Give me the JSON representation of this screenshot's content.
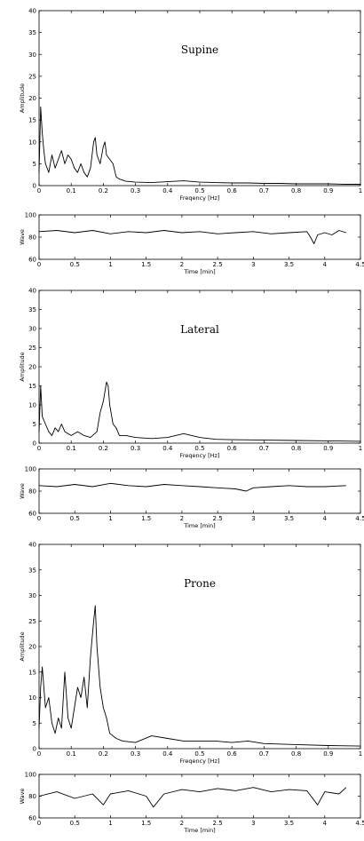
{
  "chart_data": [
    {
      "type": "line",
      "title": "Supine",
      "xlabel": "Freqency [Hz]",
      "ylabel": "Amplitude",
      "xlim": [
        0,
        1
      ],
      "ylim": [
        0,
        40
      ],
      "xticks": [
        "0",
        "0.1",
        "0.2",
        "0.3",
        "0.4",
        "0.5",
        "0.6",
        "0.7",
        "0.8",
        "0.9",
        "1"
      ],
      "yticks": [
        "0",
        "5",
        "10",
        "15",
        "20",
        "25",
        "30",
        "35",
        "40"
      ],
      "grid": false,
      "series": [
        {
          "x": [
            0,
            0.005,
            0.01,
            0.015,
            0.02,
            0.03,
            0.04,
            0.05,
            0.06,
            0.07,
            0.08,
            0.09,
            0.1,
            0.11,
            0.12,
            0.13,
            0.14,
            0.15,
            0.16,
            0.17,
            0.175,
            0.18,
            0.19,
            0.2,
            0.205,
            0.21,
            0.22,
            0.23,
            0.24,
            0.25,
            0.27,
            0.3,
            0.35,
            0.4,
            0.45,
            0.5,
            0.55,
            0.6,
            0.65,
            0.7,
            0.75,
            0.8,
            0.85,
            0.9,
            0.95,
            1
          ],
          "y": [
            3,
            18,
            12,
            8,
            5,
            3,
            7,
            4,
            6,
            8,
            5,
            7,
            6,
            4,
            3,
            5,
            3,
            2,
            4,
            10,
            11,
            7,
            5,
            9,
            10,
            7,
            6,
            5,
            2,
            1.5,
            1,
            0.8,
            0.7,
            0.9,
            1.1,
            0.8,
            0.7,
            0.6,
            0.6,
            0.5,
            0.5,
            0.4,
            0.4,
            0.4,
            0.3,
            0.3
          ]
        }
      ]
    },
    {
      "type": "line",
      "xlabel": "Time [min]",
      "ylabel": "Wave",
      "xlim": [
        0,
        4.5
      ],
      "ylim": [
        60,
        100
      ],
      "xticks": [
        "0",
        "0.5",
        "1",
        "1.5",
        "2",
        "2.5",
        "3",
        "3.5",
        "4",
        "4.5"
      ],
      "yticks": [
        "60",
        "80",
        "100"
      ],
      "grid": false,
      "series": [
        {
          "x": [
            0,
            0.25,
            0.5,
            0.75,
            1,
            1.25,
            1.5,
            1.75,
            2,
            2.25,
            2.5,
            2.75,
            3,
            3.25,
            3.5,
            3.75,
            3.8,
            3.85,
            3.9,
            4,
            4.1,
            4.2,
            4.3
          ],
          "y": [
            85,
            86,
            84,
            86,
            83,
            85,
            84,
            86,
            84,
            85,
            83,
            84,
            85,
            83,
            84,
            85,
            80,
            74,
            82,
            84,
            82,
            86,
            84
          ]
        }
      ]
    },
    {
      "type": "line",
      "title": "Lateral",
      "xlabel": "Freqency [Hz]",
      "ylabel": "Amplitude",
      "xlim": [
        0,
        1
      ],
      "ylim": [
        0,
        40
      ],
      "xticks": [
        "0",
        "0.1",
        "0.2",
        "0.3",
        "0.4",
        "0.5",
        "0.6",
        "0.7",
        "0.8",
        "0.9",
        "1"
      ],
      "yticks": [
        "0",
        "5",
        "10",
        "15",
        "20",
        "25",
        "30",
        "35",
        "40"
      ],
      "grid": false,
      "series": [
        {
          "x": [
            0,
            0.005,
            0.01,
            0.02,
            0.03,
            0.04,
            0.05,
            0.06,
            0.07,
            0.08,
            0.1,
            0.12,
            0.14,
            0.16,
            0.18,
            0.19,
            0.2,
            0.21,
            0.215,
            0.22,
            0.23,
            0.24,
            0.25,
            0.27,
            0.3,
            0.35,
            0.4,
            0.45,
            0.5,
            0.55,
            0.6,
            0.7,
            0.8,
            0.9,
            1
          ],
          "y": [
            3,
            15,
            7,
            5,
            3,
            2,
            4,
            3,
            5,
            3,
            2,
            3,
            2,
            1.5,
            3,
            8,
            11,
            16,
            15,
            10,
            5,
            4,
            2,
            2,
            1.5,
            1.2,
            1.5,
            2.5,
            1.5,
            1,
            0.9,
            0.8,
            0.7,
            0.6,
            0.5
          ]
        }
      ]
    },
    {
      "type": "line",
      "xlabel": "Time [min]",
      "ylabel": "Wave",
      "xlim": [
        0,
        4.5
      ],
      "ylim": [
        60,
        100
      ],
      "xticks": [
        "0",
        "0.5",
        "1",
        "1.5",
        "2",
        "2.5",
        "3",
        "3.5",
        "4",
        "4.5"
      ],
      "yticks": [
        "60",
        "80",
        "100"
      ],
      "grid": false,
      "series": [
        {
          "x": [
            0,
            0.25,
            0.5,
            0.75,
            1,
            1.25,
            1.5,
            1.75,
            2,
            2.25,
            2.5,
            2.75,
            2.9,
            3,
            3.25,
            3.5,
            3.75,
            4,
            4.3
          ],
          "y": [
            85,
            84,
            86,
            84,
            87,
            85,
            84,
            86,
            85,
            84,
            83,
            82,
            80,
            83,
            84,
            85,
            84,
            84,
            85
          ]
        }
      ]
    },
    {
      "type": "line",
      "title": "Prone",
      "xlabel": "Freqency [Hz]",
      "ylabel": "Amplitude",
      "xlim": [
        0,
        1
      ],
      "ylim": [
        0,
        40
      ],
      "xticks": [
        "0",
        "0.1",
        "0.2",
        "0.3",
        "0.4",
        "0.5",
        "0.6",
        "0.7",
        "0.8",
        "0.9",
        "1"
      ],
      "yticks": [
        "0",
        "5",
        "10",
        "15",
        "20",
        "25",
        "30",
        "35",
        "40"
      ],
      "grid": false,
      "series": [
        {
          "x": [
            0,
            0.005,
            0.01,
            0.02,
            0.03,
            0.04,
            0.05,
            0.06,
            0.07,
            0.08,
            0.09,
            0.1,
            0.11,
            0.12,
            0.13,
            0.14,
            0.15,
            0.16,
            0.17,
            0.175,
            0.18,
            0.19,
            0.2,
            0.21,
            0.22,
            0.24,
            0.26,
            0.3,
            0.35,
            0.4,
            0.45,
            0.5,
            0.55,
            0.6,
            0.65,
            0.7,
            0.8,
            0.9,
            1
          ],
          "y": [
            4,
            12,
            16,
            8,
            10,
            5,
            3,
            6,
            4,
            15,
            6,
            4,
            8,
            12,
            10,
            14,
            8,
            18,
            25,
            28,
            20,
            12,
            8,
            6,
            3,
            2,
            1.5,
            1.2,
            2.5,
            2,
            1.5,
            1.5,
            1.5,
            1.2,
            1.5,
            1,
            0.8,
            0.6,
            0.5
          ]
        }
      ]
    },
    {
      "type": "line",
      "xlabel": "Time [min]",
      "ylabel": "Wave",
      "xlim": [
        0,
        4.5
      ],
      "ylim": [
        60,
        100
      ],
      "xticks": [
        "0",
        "0.5",
        "1",
        "1.5",
        "2",
        "2.5",
        "3",
        "3.5",
        "4",
        "4.5"
      ],
      "yticks": [
        "60",
        "80",
        "100"
      ],
      "grid": false,
      "series": [
        {
          "x": [
            0,
            0.25,
            0.5,
            0.75,
            0.9,
            1,
            1.25,
            1.5,
            1.6,
            1.75,
            2,
            2.25,
            2.5,
            2.75,
            3,
            3.25,
            3.5,
            3.75,
            3.9,
            4,
            4.2,
            4.3
          ],
          "y": [
            80,
            84,
            78,
            82,
            72,
            82,
            85,
            80,
            70,
            82,
            86,
            84,
            87,
            85,
            88,
            84,
            86,
            85,
            72,
            84,
            82,
            88
          ]
        }
      ]
    }
  ]
}
